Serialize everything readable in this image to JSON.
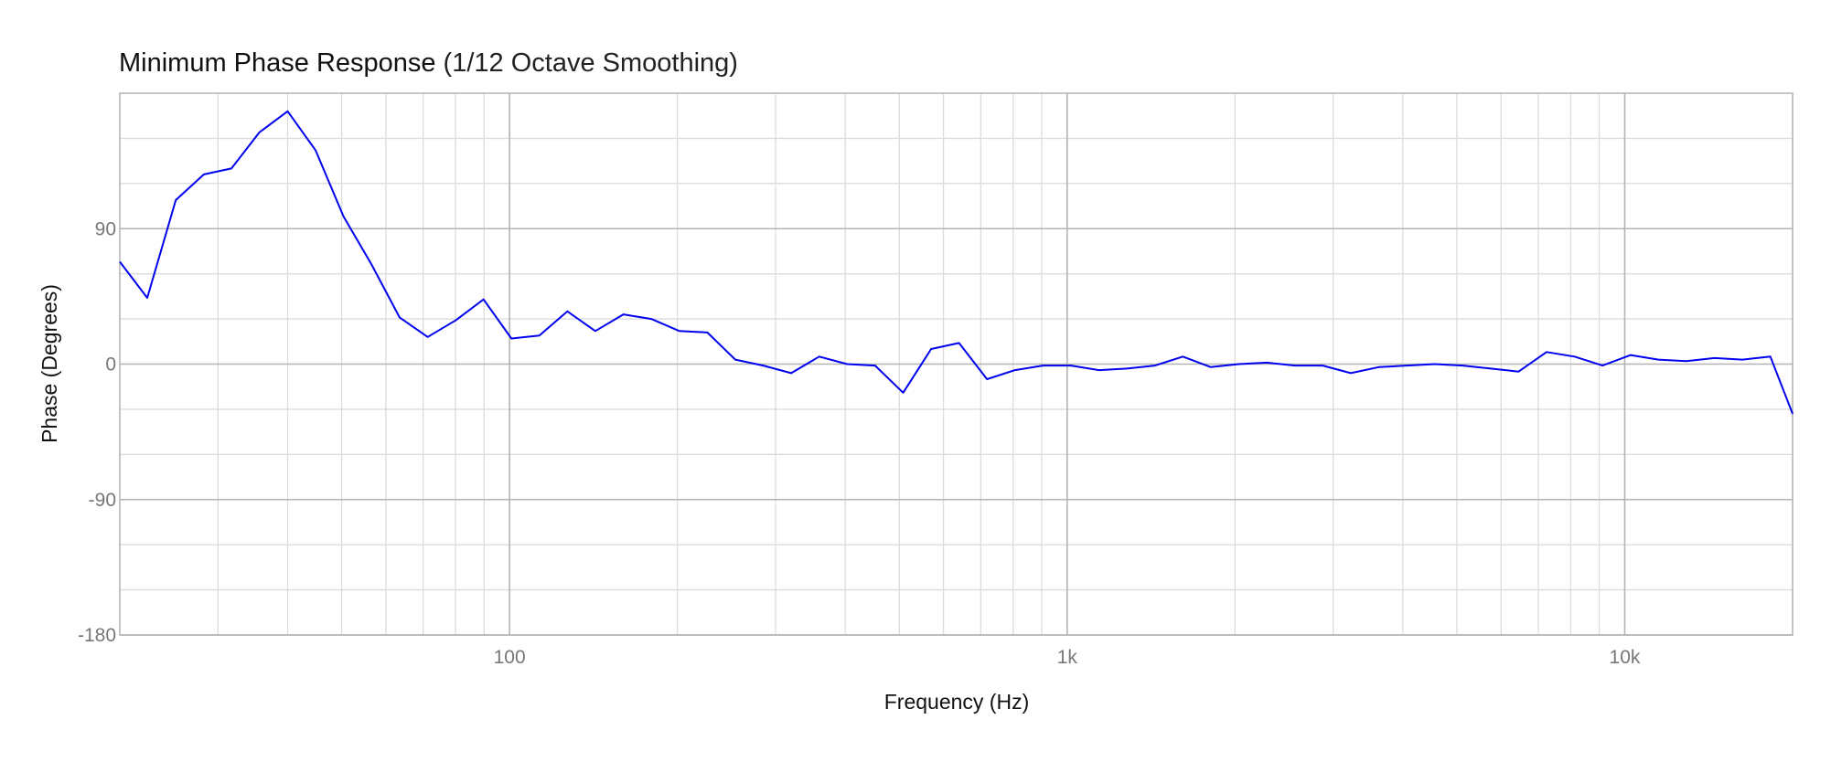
{
  "chart_data": {
    "type": "line",
    "title": "Minimum Phase Response",
    "subtitle": "(1/12 Octave Smoothing)",
    "xlabel": "Frequency (Hz)",
    "ylabel": "Phase (Degrees)",
    "x_scale": "log",
    "xlim": [
      20,
      20000
    ],
    "ylim": [
      -180,
      180
    ],
    "x_major_ticks": [
      100,
      1000,
      10000
    ],
    "x_tick_labels": [
      "100",
      "1k",
      "10k"
    ],
    "x_minor_ticks": [
      30,
      40,
      50,
      60,
      70,
      80,
      90,
      200,
      300,
      400,
      500,
      600,
      700,
      800,
      900,
      2000,
      3000,
      4000,
      5000,
      6000,
      7000,
      8000,
      9000,
      20000
    ],
    "y_major_ticks": [
      -180,
      -90,
      0,
      90
    ],
    "y_tick_labels": [
      "-180",
      "-90",
      "0",
      "90"
    ],
    "y_minor_ticks": [
      -150,
      -120,
      -60,
      -30,
      30,
      60,
      120,
      150
    ],
    "grid": true,
    "line_color": "#0000ee",
    "series": [
      {
        "x": [
          20,
          22.4,
          25.2,
          28.3,
          31.7,
          35.6,
          40,
          44.9,
          50.4,
          56.6,
          63.5,
          71.3,
          80,
          89.8,
          100.8,
          113.1,
          127,
          142.5,
          160,
          179.6,
          201.6,
          226.3,
          254,
          285.1,
          320,
          359.2,
          403.2,
          452.5,
          508,
          570.2,
          640,
          718.4,
          806.3,
          905.1,
          1016,
          1140.4,
          1280,
          1436.8,
          1612.7,
          1810.2,
          2031.9,
          2280.7,
          2560,
          2873.5,
          3225.4,
          3620.4,
          4063.7,
          4561.4,
          5120,
          5747,
          6450.8,
          7240.8,
          8127.5,
          9122.8,
          10240,
          11494,
          12901.6,
          14481.5,
          16255,
          18245.6,
          20000
        ],
        "y": [
          68,
          44,
          109,
          126,
          130,
          154,
          168,
          142,
          98,
          66,
          31,
          18,
          29,
          43,
          17,
          19,
          35,
          22,
          33,
          30,
          22,
          21,
          3,
          -1,
          -6,
          5,
          0,
          -1,
          -19,
          10,
          14,
          -10,
          -4,
          -1,
          -1,
          -4,
          -3,
          -1,
          5,
          -2,
          0,
          1,
          -1,
          -1,
          -6,
          -2,
          -1,
          0,
          -1,
          -3,
          -5,
          8,
          5,
          -1,
          6,
          3,
          2,
          4,
          3,
          5,
          -33
        ]
      }
    ]
  }
}
